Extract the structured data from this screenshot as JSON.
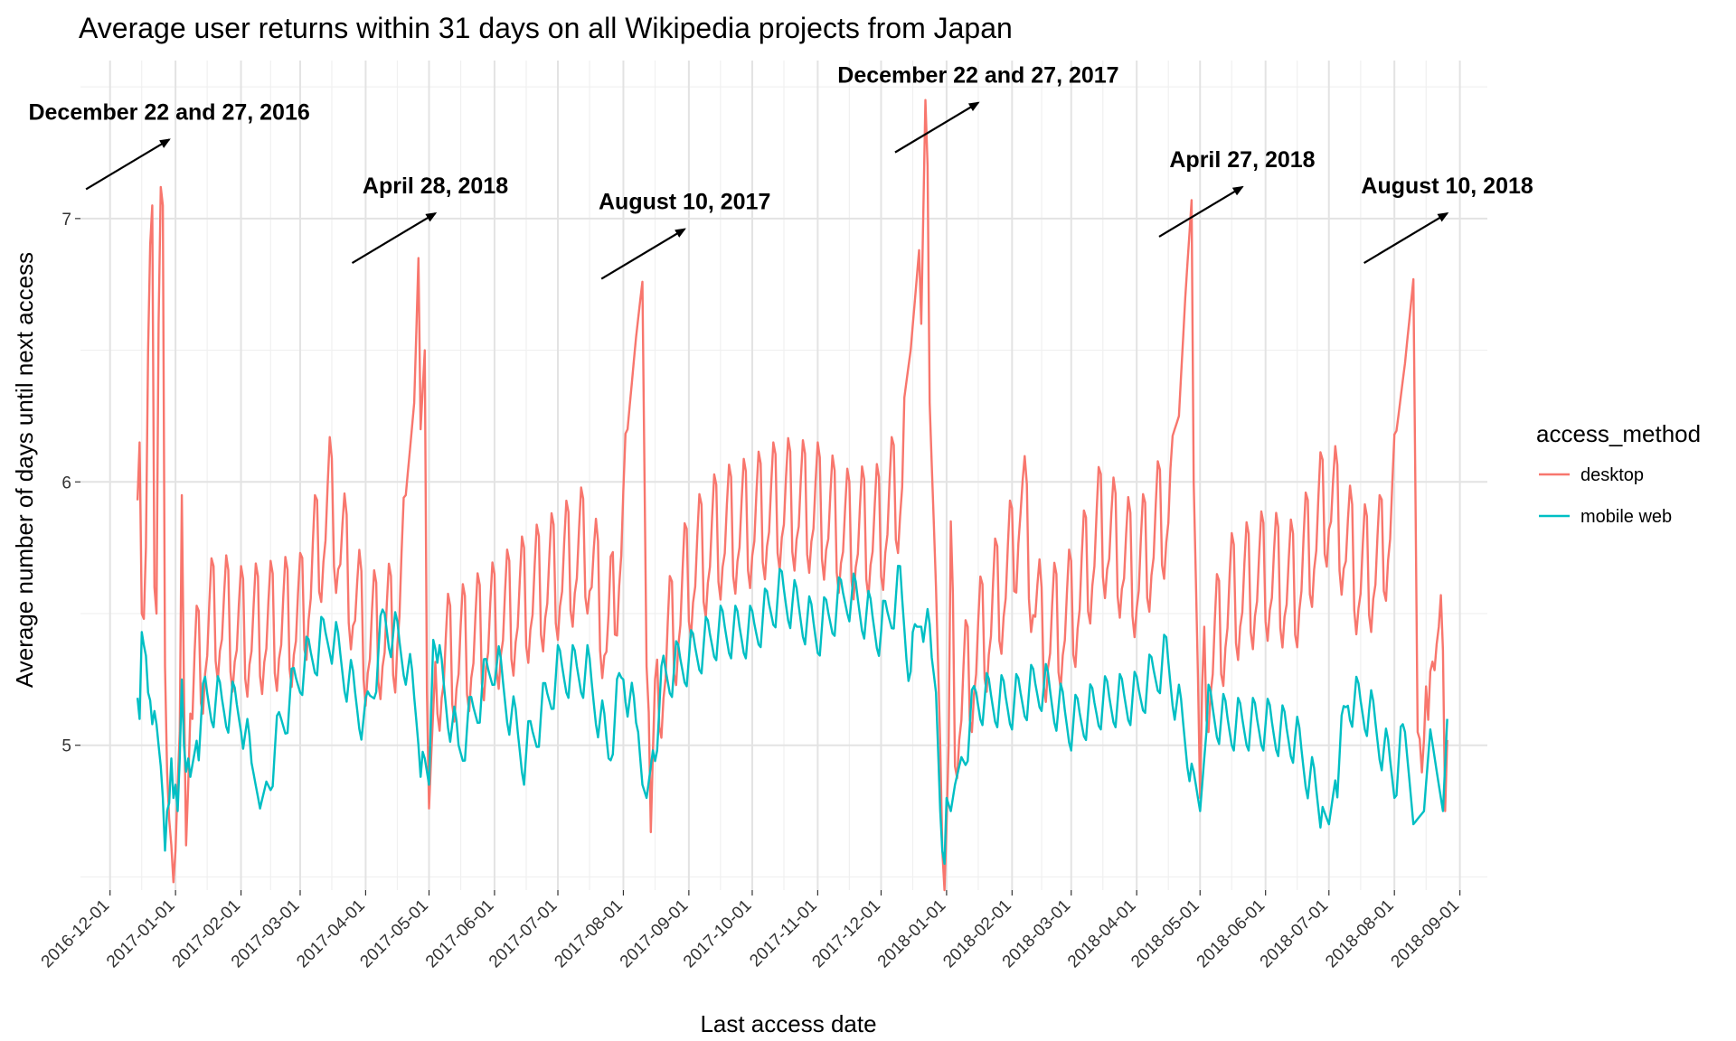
{
  "chart_data": {
    "type": "line",
    "title": "Average user returns within 31 days on all Wikipedia projects from Japan",
    "xlabel": "Last access date",
    "ylabel": "Average number of days until next access",
    "x_tick_labels": [
      "2016-12-01",
      "2017-01-01",
      "2017-02-01",
      "2017-03-01",
      "2017-04-01",
      "2017-05-01",
      "2017-06-01",
      "2017-07-01",
      "2017-08-01",
      "2017-09-01",
      "2017-10-01",
      "2017-11-01",
      "2017-12-01",
      "2018-01-01",
      "2018-02-01",
      "2018-03-01",
      "2018-04-01",
      "2018-05-01",
      "2018-06-01",
      "2018-07-01",
      "2018-08-01",
      "2018-09-01"
    ],
    "y_ticks": [
      5,
      6,
      7
    ],
    "ylim": [
      4.45,
      7.6
    ],
    "xlim": [
      "2016-11-17",
      "2018-09-14"
    ],
    "grid": true,
    "legend": {
      "title": "access_method",
      "position": "right"
    },
    "series": [
      {
        "name": "desktop",
        "color": "#F8766D",
        "points": [
          [
            "2016-12-14",
            5.88
          ],
          [
            "2016-12-15",
            6.15
          ],
          [
            "2016-12-16",
            5.5
          ],
          [
            "2016-12-17",
            5.48
          ],
          [
            "2016-12-18",
            5.75
          ],
          [
            "2016-12-19",
            6.5
          ],
          [
            "2016-12-20",
            6.9
          ],
          [
            "2016-12-21",
            7.05
          ],
          [
            "2016-12-22",
            5.6
          ],
          [
            "2016-12-23",
            5.5
          ],
          [
            "2016-12-24",
            6.6
          ],
          [
            "2016-12-25",
            7.12
          ],
          [
            "2016-12-26",
            7.05
          ],
          [
            "2016-12-27",
            5.3
          ],
          [
            "2016-12-28",
            4.9
          ],
          [
            "2016-12-29",
            4.72
          ],
          [
            "2016-12-30",
            4.62
          ],
          [
            "2016-12-31",
            4.48
          ],
          [
            "2017-01-01",
            4.6
          ],
          [
            "2017-01-02",
            4.85
          ],
          [
            "2017-01-03",
            5.05
          ],
          [
            "2017-01-04",
            5.95
          ],
          [
            "2017-01-05",
            5.2
          ],
          [
            "2017-01-06",
            5.0
          ],
          [
            "2017-01-07",
            5.3
          ],
          [
            "2017-01-08",
            5.45
          ],
          [
            "2017-01-09",
            5.38
          ],
          [
            "2017-01-10",
            5.45
          ],
          [
            "2017-01-15",
            5.6
          ],
          [
            "2017-01-20",
            5.7
          ],
          [
            "2017-02-01",
            5.63
          ],
          [
            "2017-02-15",
            5.65
          ],
          [
            "2017-03-01",
            5.68
          ],
          [
            "2017-03-15",
            6.12
          ],
          [
            "2017-04-01",
            5.6
          ],
          [
            "2017-04-15",
            5.65
          ],
          [
            "2017-04-20",
            5.95
          ],
          [
            "2017-04-24",
            6.3
          ],
          [
            "2017-04-26",
            6.85
          ],
          [
            "2017-04-27",
            6.2
          ],
          [
            "2017-04-29",
            6.5
          ],
          [
            "2017-04-30",
            5.2
          ],
          [
            "2017-05-01",
            4.76
          ],
          [
            "2017-05-02",
            4.95
          ],
          [
            "2017-05-05",
            5.5
          ],
          [
            "2017-05-15",
            5.55
          ],
          [
            "2017-06-01",
            5.65
          ],
          [
            "2017-06-15",
            5.75
          ],
          [
            "2017-07-01",
            5.85
          ],
          [
            "2017-07-15",
            5.95
          ],
          [
            "2017-07-25",
            5.6
          ],
          [
            "2017-08-03",
            6.2
          ],
          [
            "2017-08-07",
            6.55
          ],
          [
            "2017-08-10",
            6.76
          ],
          [
            "2017-08-12",
            5.3
          ],
          [
            "2017-08-14",
            4.95
          ],
          [
            "2017-08-18",
            5.45
          ],
          [
            "2017-09-01",
            5.85
          ],
          [
            "2017-09-15",
            6.0
          ],
          [
            "2017-10-01",
            6.05
          ],
          [
            "2017-10-15",
            6.12
          ],
          [
            "2017-11-01",
            6.1
          ],
          [
            "2017-11-15",
            6.0
          ],
          [
            "2017-12-01",
            6.02
          ],
          [
            "2017-12-10",
            6.2
          ],
          [
            "2017-12-15",
            6.5
          ],
          [
            "2017-12-19",
            6.88
          ],
          [
            "2017-12-20",
            6.6
          ],
          [
            "2017-12-22",
            7.45
          ],
          [
            "2017-12-23",
            7.2
          ],
          [
            "2017-12-24",
            6.3
          ],
          [
            "2017-12-27",
            5.6
          ],
          [
            "2017-12-29",
            5.0
          ],
          [
            "2017-12-30",
            4.6
          ],
          [
            "2017-12-31",
            4.45
          ],
          [
            "2018-01-01",
            4.7
          ],
          [
            "2018-01-02",
            5.0
          ],
          [
            "2018-01-03",
            5.85
          ],
          [
            "2018-01-05",
            5.3
          ],
          [
            "2018-01-15",
            5.55
          ],
          [
            "2018-02-01",
            5.9
          ],
          [
            "2018-02-05",
            6.16
          ],
          [
            "2018-02-15",
            5.6
          ],
          [
            "2018-03-01",
            5.7
          ],
          [
            "2018-03-15",
            6.03
          ],
          [
            "2018-04-01",
            5.85
          ],
          [
            "2018-04-15",
            6.1
          ],
          [
            "2018-04-21",
            6.25
          ],
          [
            "2018-04-24",
            6.7
          ],
          [
            "2018-04-27",
            7.07
          ],
          [
            "2018-04-28",
            6.0
          ],
          [
            "2018-05-01",
            4.9
          ],
          [
            "2018-05-03",
            5.45
          ],
          [
            "2018-05-15",
            5.75
          ],
          [
            "2018-06-01",
            5.85
          ],
          [
            "2018-06-15",
            5.8
          ],
          [
            "2018-07-01",
            6.15
          ],
          [
            "2018-07-15",
            5.85
          ],
          [
            "2018-07-25",
            5.9
          ],
          [
            "2018-08-01",
            6.13
          ],
          [
            "2018-08-06",
            6.45
          ],
          [
            "2018-08-10",
            6.77
          ],
          [
            "2018-08-12",
            5.05
          ],
          [
            "2018-08-15",
            4.97
          ],
          [
            "2018-08-18",
            5.73
          ],
          [
            "2018-08-22",
            5.4
          ],
          [
            "2018-08-24",
            5.74
          ],
          [
            "2018-08-25",
            5.2
          ],
          [
            "2018-08-26",
            5.35
          ]
        ]
      },
      {
        "name": "mobile web",
        "color": "#00BFC4",
        "points": [
          [
            "2016-12-14",
            5.28
          ],
          [
            "2016-12-15",
            5.22
          ],
          [
            "2016-12-16",
            5.45
          ],
          [
            "2016-12-17",
            5.3
          ],
          [
            "2016-12-18",
            5.28
          ],
          [
            "2016-12-19",
            5.2
          ],
          [
            "2016-12-20",
            5.22
          ],
          [
            "2016-12-21",
            5.18
          ],
          [
            "2016-12-22",
            5.25
          ],
          [
            "2016-12-23",
            5.08
          ],
          [
            "2016-12-24",
            5.0
          ],
          [
            "2016-12-25",
            4.92
          ],
          [
            "2016-12-26",
            4.8
          ],
          [
            "2016-12-27",
            4.6
          ],
          [
            "2016-12-28",
            4.75
          ],
          [
            "2016-12-29",
            4.78
          ],
          [
            "2016-12-30",
            4.95
          ],
          [
            "2016-12-31",
            4.8
          ],
          [
            "2017-01-01",
            4.85
          ],
          [
            "2017-01-02",
            4.75
          ],
          [
            "2017-01-03",
            4.95
          ],
          [
            "2017-01-04",
            5.25
          ],
          [
            "2017-01-05",
            5.0
          ],
          [
            "2017-01-06",
            4.9
          ],
          [
            "2017-01-07",
            4.95
          ],
          [
            "2017-01-08",
            4.88
          ],
          [
            "2017-01-15",
            5.2
          ],
          [
            "2017-02-01",
            5.15
          ],
          [
            "2017-02-10",
            4.76
          ],
          [
            "2017-02-20",
            5.1
          ],
          [
            "2017-03-01",
            5.3
          ],
          [
            "2017-03-15",
            5.45
          ],
          [
            "2017-04-01",
            5.1
          ],
          [
            "2017-04-10",
            5.5
          ],
          [
            "2017-04-20",
            5.35
          ],
          [
            "2017-04-26",
            5.1
          ],
          [
            "2017-04-27",
            5.0
          ],
          [
            "2017-04-29",
            4.95
          ],
          [
            "2017-05-01",
            4.85
          ],
          [
            "2017-05-03",
            5.4
          ],
          [
            "2017-05-15",
            5.0
          ],
          [
            "2017-06-01",
            5.35
          ],
          [
            "2017-06-15",
            4.97
          ],
          [
            "2017-07-01",
            5.3
          ],
          [
            "2017-07-15",
            5.3
          ],
          [
            "2017-07-25",
            5.0
          ],
          [
            "2017-08-01",
            5.3
          ],
          [
            "2017-08-08",
            5.05
          ],
          [
            "2017-08-10",
            4.85
          ],
          [
            "2017-08-12",
            4.8
          ],
          [
            "2017-08-20",
            5.28
          ],
          [
            "2017-09-01",
            5.35
          ],
          [
            "2017-09-15",
            5.45
          ],
          [
            "2017-10-01",
            5.45
          ],
          [
            "2017-10-15",
            5.6
          ],
          [
            "2017-11-01",
            5.45
          ],
          [
            "2017-11-15",
            5.6
          ],
          [
            "2017-12-01",
            5.45
          ],
          [
            "2017-12-10",
            5.62
          ],
          [
            "2017-12-15",
            5.3
          ],
          [
            "2017-12-20",
            5.55
          ],
          [
            "2017-12-24",
            5.4
          ],
          [
            "2017-12-27",
            5.2
          ],
          [
            "2017-12-29",
            4.75
          ],
          [
            "2017-12-30",
            4.6
          ],
          [
            "2017-12-31",
            4.55
          ],
          [
            "2018-01-01",
            4.8
          ],
          [
            "2018-01-03",
            4.75
          ],
          [
            "2018-01-05",
            4.85
          ],
          [
            "2018-01-15",
            5.2
          ],
          [
            "2018-02-01",
            5.18
          ],
          [
            "2018-02-15",
            5.25
          ],
          [
            "2018-03-01",
            5.1
          ],
          [
            "2018-03-15",
            5.18
          ],
          [
            "2018-04-01",
            5.2
          ],
          [
            "2018-04-15",
            5.35
          ],
          [
            "2018-04-27",
            4.95
          ],
          [
            "2018-05-01",
            4.75
          ],
          [
            "2018-05-05",
            5.15
          ],
          [
            "2018-05-15",
            5.1
          ],
          [
            "2018-06-01",
            5.1
          ],
          [
            "2018-06-15",
            5.05
          ],
          [
            "2018-07-01",
            4.7
          ],
          [
            "2018-07-10",
            5.2
          ],
          [
            "2018-07-20",
            5.15
          ],
          [
            "2018-08-01",
            4.9
          ],
          [
            "2018-08-06",
            5.05
          ],
          [
            "2018-08-10",
            4.7
          ],
          [
            "2018-08-15",
            4.75
          ],
          [
            "2018-08-18",
            5.06
          ],
          [
            "2018-08-22",
            4.85
          ],
          [
            "2018-08-24",
            4.75
          ],
          [
            "2018-08-26",
            5.1
          ]
        ]
      }
    ],
    "annotations": [
      {
        "label": "December 22 and 27, 2016",
        "x": "2016-12-29",
        "y": 7.3
      },
      {
        "label": "April 28, 2018",
        "x": "2017-05-04",
        "y": 7.02
      },
      {
        "label": "August 10, 2017",
        "x": "2017-08-30",
        "y": 6.96
      },
      {
        "label": "December 22 and 27, 2017",
        "x": "2018-01-16",
        "y": 7.44
      },
      {
        "label": "April 27, 2018",
        "x": "2018-05-21",
        "y": 7.12
      },
      {
        "label": "August 10, 2018",
        "x": "2018-08-26",
        "y": 7.02
      }
    ]
  }
}
